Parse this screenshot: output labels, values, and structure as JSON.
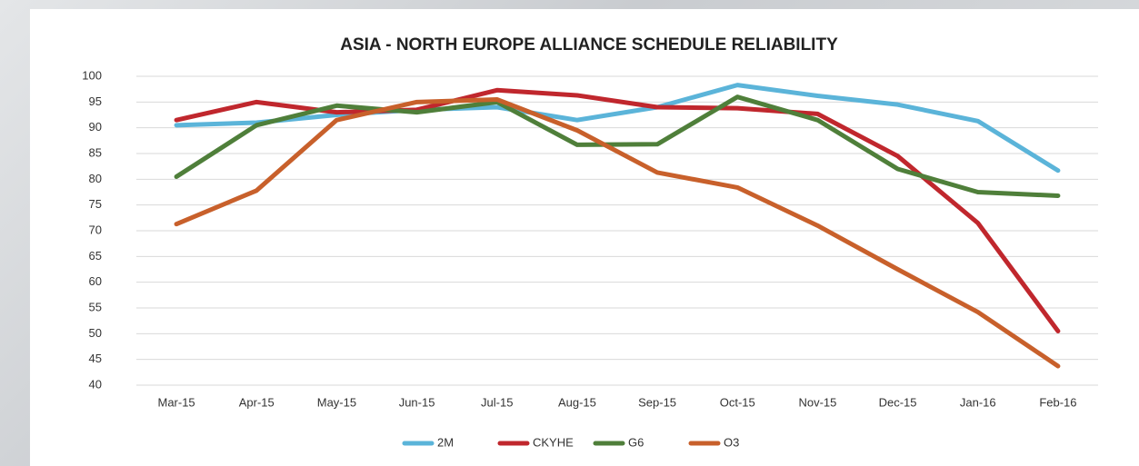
{
  "chart_data": {
    "type": "line",
    "title": "ASIA - NORTH EUROPE ALLIANCE SCHEDULE RELIABILITY",
    "categories": [
      "Mar-15",
      "Apr-15",
      "May-15",
      "Jun-15",
      "Jul-15",
      "Aug-15",
      "Sep-15",
      "Oct-15",
      "Nov-15",
      "Dec-15",
      "Jan-16",
      "Feb-16"
    ],
    "series": [
      {
        "name": "2M",
        "color": "#5bb4d9",
        "values": [
          90.5,
          91,
          92.5,
          93.5,
          94,
          91.5,
          94,
          98.3,
          96.2,
          94.5,
          91.3,
          81.7
        ]
      },
      {
        "name": "CKYHE",
        "color": "#c0272d",
        "values": [
          91.5,
          95,
          93,
          93.5,
          97.3,
          96.3,
          94,
          93.8,
          92.7,
          84.5,
          71.5,
          50.5
        ]
      },
      {
        "name": "G6",
        "color": "#4f7f3a",
        "values": [
          80.5,
          90.5,
          94.3,
          93,
          95,
          86.7,
          86.8,
          96,
          91.5,
          82,
          77.5,
          76.8
        ]
      },
      {
        "name": "O3",
        "color": "#c8602b",
        "values": [
          71.3,
          77.8,
          91.5,
          95,
          95.5,
          89.5,
          81.3,
          78.4,
          71,
          62.5,
          54.2,
          43.7
        ]
      }
    ],
    "ylim": [
      40,
      100
    ],
    "yticks": [
      40,
      45,
      50,
      55,
      60,
      65,
      70,
      75,
      80,
      85,
      90,
      95,
      100
    ],
    "grid": true,
    "legend": "bottom"
  }
}
